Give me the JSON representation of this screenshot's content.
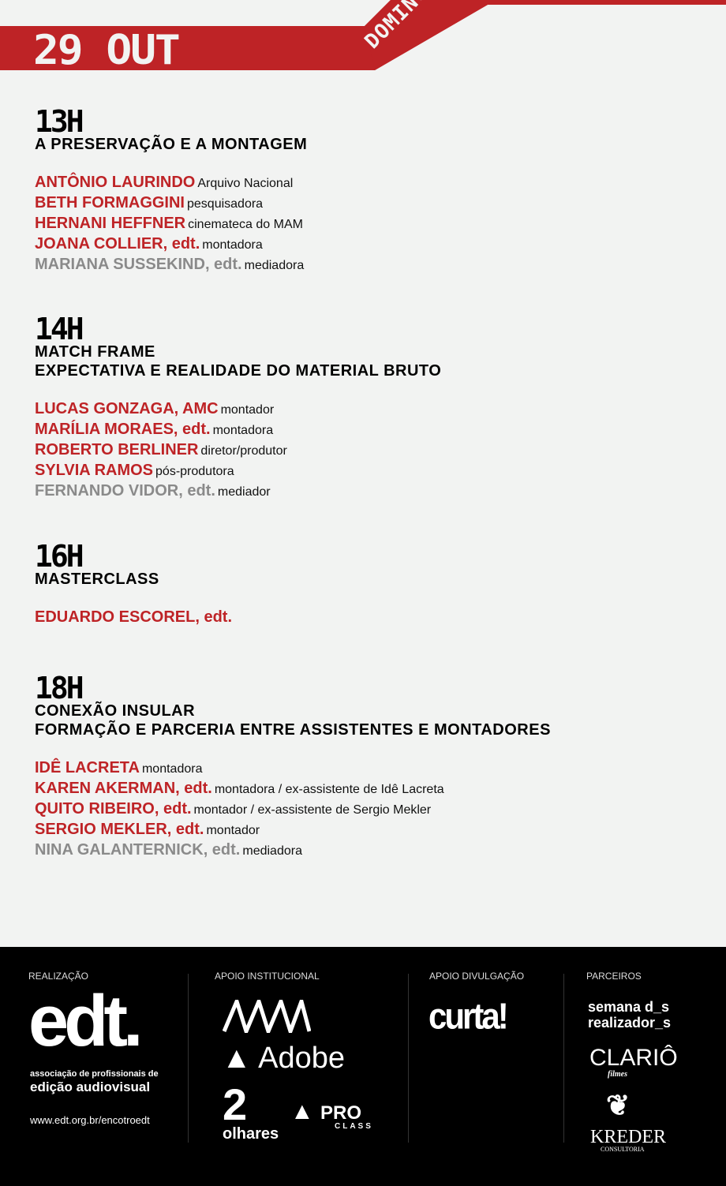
{
  "header": {
    "date": "29 OUT",
    "day": "DOMINGO",
    "accent": "#be2326"
  },
  "sections": [
    {
      "hour": "13H",
      "subtitle": [
        "A PRESERVAÇÃO E A MONTAGEM"
      ],
      "people": [
        {
          "name": "ANTÔNIO LAURINDO",
          "role": "Arquivo Nacional"
        },
        {
          "name": "BETH FORMAGGINI",
          "role": "pesquisadora"
        },
        {
          "name": "HERNANI HEFFNER",
          "role": "cinemateca do MAM"
        },
        {
          "name": "JOANA COLLIER, edt.",
          "role": "montadora"
        },
        {
          "name": "MARIANA SUSSEKIND, edt.",
          "role": "mediadora",
          "moderator": true
        }
      ]
    },
    {
      "hour": "14H",
      "subtitle": [
        "MATCH FRAME",
        "EXPECTATIVA E REALIDADE DO MATERIAL BRUTO"
      ],
      "people": [
        {
          "name": "LUCAS GONZAGA, AMC",
          "role": "montador"
        },
        {
          "name": "MARÍLIA MORAES, edt.",
          "role": "montadora"
        },
        {
          "name": "ROBERTO BERLINER",
          "role": "diretor/produtor"
        },
        {
          "name": "SYLVIA RAMOS",
          "role": "pós-produtora"
        },
        {
          "name": "FERNANDO VIDOR, edt.",
          "role": "mediador",
          "moderator": true
        }
      ]
    },
    {
      "hour": "16H",
      "subtitle": [
        "MASTERCLASS"
      ],
      "people": [
        {
          "name": "EDUARDO ESCOREL, edt.",
          "role": ""
        }
      ]
    },
    {
      "hour": "18H",
      "subtitle": [
        "CONEXÃO INSULAR",
        "FORMAÇÃO E PARCERIA ENTRE ASSISTENTES E MONTADORES"
      ],
      "people": [
        {
          "name": "IDÊ LACRETA",
          "role": "montadora"
        },
        {
          "name": "KAREN AKERMAN, edt.",
          "role": "montadora / ex-assistente de Idê Lacreta"
        },
        {
          "name": "QUITO RIBEIRO, edt.",
          "role": "montador / ex-assistente de Sergio Mekler"
        },
        {
          "name": "SERGIO MEKLER, edt.",
          "role": "montador"
        },
        {
          "name": "NINA GALANTERNICK, edt.",
          "role": "mediadora",
          "moderator": true
        }
      ]
    }
  ],
  "footer": {
    "realizacao": {
      "label": "REALIZAÇÃO",
      "logo": "edt.",
      "logo_line1": "associação de profissionais de",
      "logo_line2": "edição audiovisual",
      "url": "www.edt.org.br/encotroedt"
    },
    "apoio_institucional": {
      "label": "APOIO INSTITUCIONAL",
      "logos": [
        "AAA",
        "Adobe",
        "2 olhares",
        "PRO CLASS"
      ]
    },
    "apoio_divulgacao": {
      "label": "APOIO DIVULGAÇÃO",
      "logos": [
        "curta!"
      ]
    },
    "parceiros": {
      "label": "PARCEIROS",
      "logos": [
        "semana d_s realizador_s",
        "CLARIÔ filmes",
        "KREDER CONSULTORIA"
      ]
    }
  }
}
